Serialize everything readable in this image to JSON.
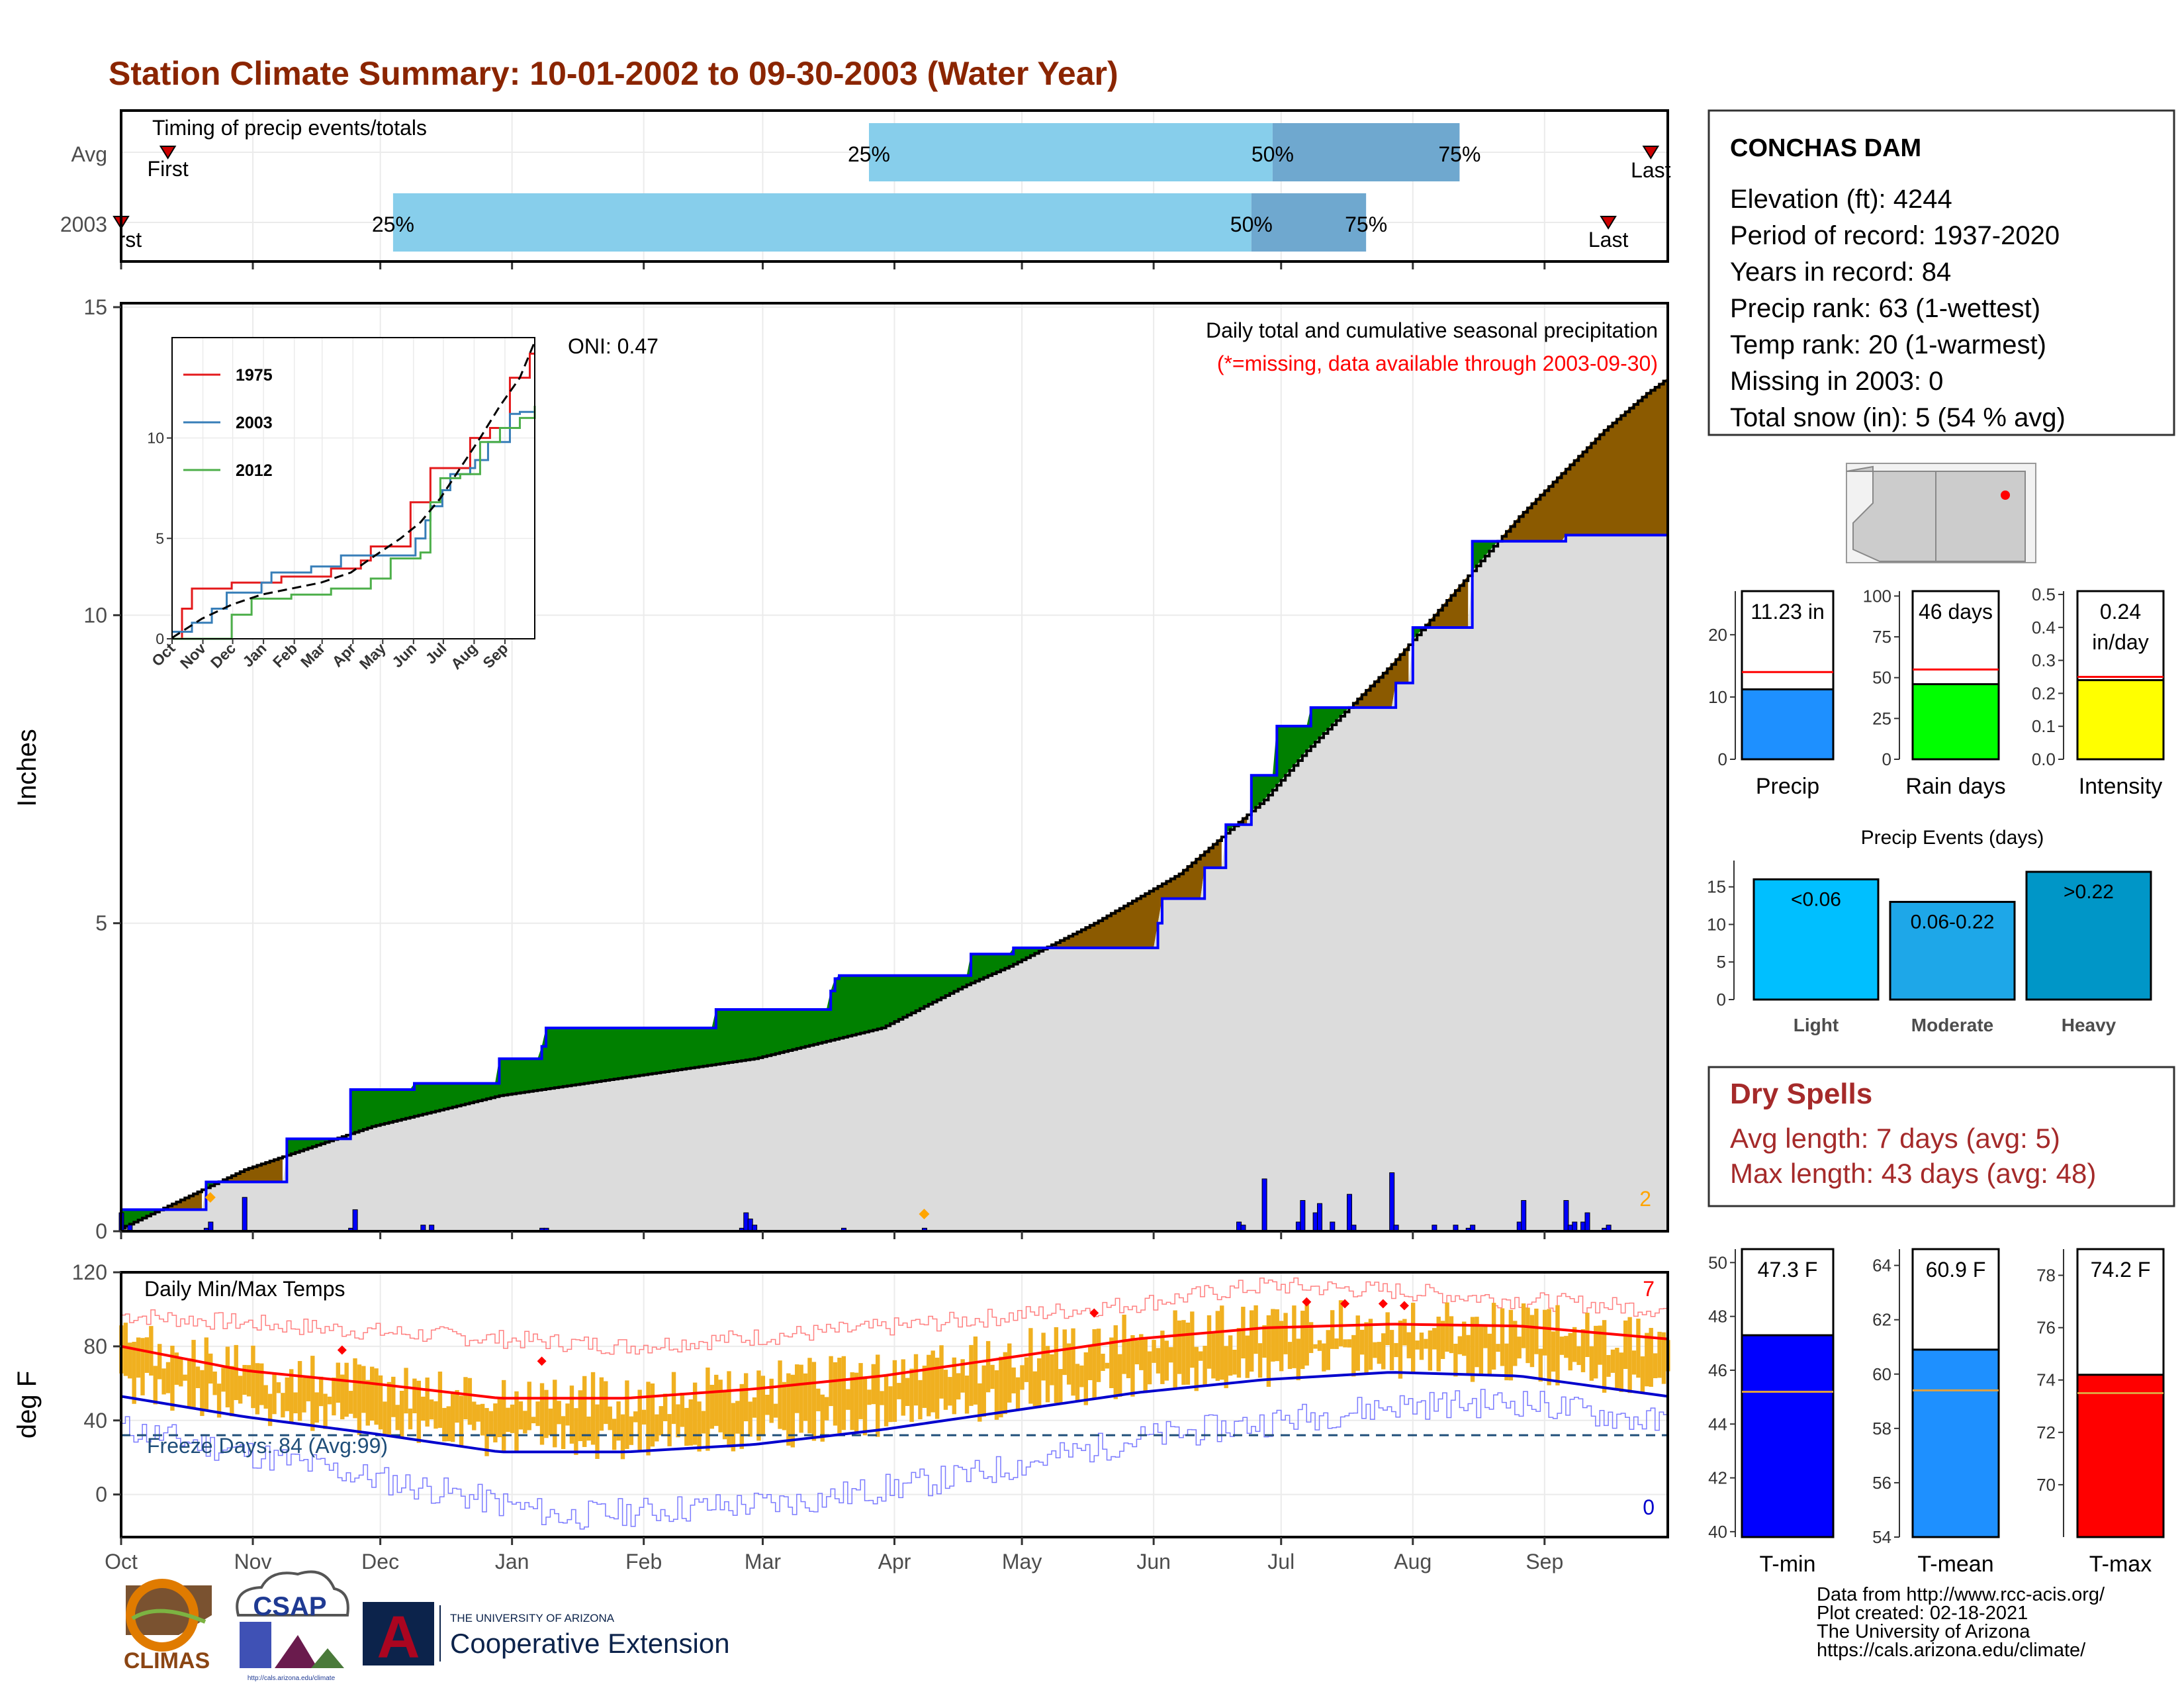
{
  "title": "Station Climate Summary: 10-01-2002 to 09-30-2003 (Water Year)",
  "colors": {
    "title": "#8b2500",
    "dry_spells": "#a52a2a",
    "cum_2003": "#0000ff",
    "cum_avg_fill": "#dcdcdc",
    "above_avg": "#008000",
    "below_avg": "#8b5a00",
    "daily_bar": "#0000ff",
    "temp_bar": "#f0b020",
    "tmax_smooth": "#ff0000",
    "tmin_smooth": "#0000cd",
    "freeze_line": "#1f4e79"
  },
  "timing": {
    "label": "Timing of precip events/totals",
    "rows": [
      "Avg",
      "2003"
    ],
    "avg": {
      "first_day": 12,
      "p25_day": 177,
      "p50_day": 272,
      "p75_day": 316,
      "last_day": 361,
      "first": "First",
      "last": "Last",
      "p25": "25%",
      "p50": "50%",
      "p75": "75%"
    },
    "y2003": {
      "first_day": 1,
      "p25_day": 65,
      "p50_day": 267,
      "p75_day": 294,
      "last_day": 351,
      "first": "First",
      "last": "Last",
      "p25": "25%",
      "p50": "50%",
      "p75": "75%"
    }
  },
  "precip_panel": {
    "subtitle": "Daily total and cumulative seasonal precipitation",
    "missing_note": "(*=missing, data available through 2003-09-30)",
    "oni": "ONI: 0.47",
    "ylabel": "Inches",
    "yticks": [
      0,
      5,
      10,
      15
    ],
    "ylim": [
      0,
      15
    ],
    "corner_count": "2",
    "month_labels": [
      "Oct",
      "Nov",
      "Dec",
      "Jan",
      "Feb",
      "Mar",
      "Apr",
      "May",
      "Jun",
      "Jul",
      "Aug",
      "Sep"
    ]
  },
  "chart_data": [
    {
      "type": "area",
      "name": "cumulative precipitation",
      "ylabel": "Inches",
      "ylim": [
        0,
        15
      ],
      "x_unit": "day of water year (1 = Oct 1)",
      "series": [
        {
          "name": "2003",
          "x": [
            1,
            20,
            21,
            24,
            40,
            41,
            55,
            56,
            70,
            71,
            90,
            91,
            100,
            101,
            140,
            141,
            168,
            169,
            170,
            200,
            201,
            210,
            211,
            245,
            246,
            255,
            256,
            260,
            261,
            266,
            267,
            272,
            273,
            280,
            281,
            286,
            287,
            300,
            301,
            304,
            305,
            318,
            319,
            340,
            341,
            350,
            351,
            365
          ],
          "y": [
            0.35,
            0.35,
            0.8,
            0.8,
            1.5,
            1.5,
            2.3,
            2.3,
            2.4,
            2.4,
            2.8,
            2.8,
            3.0,
            3.3,
            3.3,
            3.6,
            3.9,
            4.1,
            4.15,
            4.15,
            4.5,
            4.5,
            4.6,
            5.0,
            5.4,
            5.4,
            5.9,
            5.9,
            6.6,
            6.6,
            7.4,
            7.4,
            8.2,
            8.2,
            8.5,
            8.5,
            8.5,
            8.5,
            8.9,
            8.9,
            9.8,
            9.8,
            11.2,
            11.2,
            11.3,
            11.3,
            11.3,
            11.3
          ]
        },
        {
          "name": "Avg",
          "x": [
            1,
            30,
            60,
            90,
            120,
            150,
            180,
            200,
            210,
            230,
            250,
            260,
            270,
            280,
            290,
            300,
            310,
            320,
            330,
            340,
            350,
            360,
            365
          ],
          "y": [
            0.05,
            1.0,
            1.7,
            2.2,
            2.5,
            2.8,
            3.3,
            4.0,
            4.3,
            5.0,
            5.8,
            6.4,
            7.0,
            7.8,
            8.5,
            9.2,
            10.0,
            10.8,
            11.6,
            12.3,
            13.0,
            13.6,
            13.85
          ]
        }
      ],
      "daily_totals": {
        "x": [
          1,
          3,
          21,
          22,
          30,
          55,
          56,
          72,
          74,
          100,
          101,
          147,
          148,
          149,
          150,
          171,
          190,
          264,
          265,
          270,
          278,
          279,
          282,
          283,
          286,
          290,
          291,
          300,
          301,
          310,
          315,
          318,
          319,
          330,
          331,
          341,
          342,
          343,
          345,
          346,
          350,
          351
        ],
        "y": [
          0.3,
          0.1,
          0.05,
          0.15,
          0.55,
          0.05,
          0.35,
          0.1,
          0.1,
          0.05,
          0.05,
          0.05,
          0.3,
          0.2,
          0.1,
          0.05,
          0.05,
          0.15,
          0.1,
          0.85,
          0.15,
          0.5,
          0.3,
          0.45,
          0.15,
          0.6,
          0.1,
          0.95,
          0.1,
          0.1,
          0.1,
          0.05,
          0.1,
          0.15,
          0.5,
          0.5,
          0.1,
          0.15,
          0.15,
          0.3,
          0.05,
          0.1
        ]
      }
    },
    {
      "type": "line",
      "name": "inset cumulative by year",
      "x_labels": [
        "Oct",
        "Nov",
        "Dec",
        "Jan",
        "Feb",
        "Mar",
        "Apr",
        "May",
        "Jun",
        "Jul",
        "Aug",
        "Sep"
      ],
      "yticks": [
        0,
        5,
        10
      ],
      "ylim": [
        0,
        15
      ],
      "series": [
        {
          "name": "1975",
          "x": [
            0,
            10,
            20,
            60,
            110,
            160,
            190,
            200,
            230,
            240,
            260,
            280,
            300,
            320,
            340,
            360,
            365
          ],
          "y": [
            0,
            1.5,
            2.5,
            2.8,
            3.1,
            3.5,
            3.9,
            4.6,
            4.6,
            6.8,
            8.5,
            8.5,
            10.0,
            10.5,
            13.0,
            14.2,
            14.2
          ]
        },
        {
          "name": "2003",
          "x": [
            0,
            20,
            40,
            55,
            90,
            100,
            140,
            170,
            200,
            245,
            255,
            260,
            272,
            280,
            300,
            305,
            318,
            340,
            350,
            365
          ],
          "y": [
            0.35,
            0.8,
            1.5,
            2.3,
            2.8,
            3.3,
            3.6,
            4.15,
            4.15,
            5.0,
            5.9,
            6.6,
            7.4,
            8.2,
            8.5,
            8.9,
            9.8,
            11.2,
            11.3,
            11.3
          ]
        },
        {
          "name": "2012",
          "x": [
            0,
            40,
            60,
            80,
            120,
            160,
            200,
            220,
            250,
            260,
            270,
            290,
            310,
            330,
            350,
            365
          ],
          "y": [
            0,
            0,
            1.2,
            2.0,
            2.2,
            2.5,
            3.0,
            4.0,
            4.3,
            6.8,
            8.0,
            8.2,
            9.8,
            10.5,
            11.0,
            11.6
          ]
        },
        {
          "name": "Avg",
          "x": [
            0,
            30,
            60,
            90,
            120,
            150,
            180,
            200,
            230,
            250,
            270,
            290,
            310,
            330,
            350,
            365
          ],
          "y": [
            0.05,
            1.0,
            1.7,
            2.2,
            2.5,
            2.8,
            3.3,
            4.0,
            5.0,
            5.8,
            7.0,
            8.5,
            10.0,
            11.6,
            13.0,
            14.8
          ]
        }
      ]
    },
    {
      "type": "bar",
      "name": "seasonal totals",
      "panels": [
        {
          "title": "Precip",
          "label": "11.23 in",
          "value": 11.23,
          "average": 14.0,
          "ylim": [
            0,
            27
          ],
          "yticks": [
            0,
            10,
            20
          ],
          "color": "#1e90ff"
        },
        {
          "title": "Rain days",
          "label": "46 days",
          "value": 46,
          "average": 55,
          "ylim": [
            0,
            103
          ],
          "yticks": [
            0,
            25,
            50,
            75,
            100
          ],
          "color": "#00ff00"
        },
        {
          "title": "Intensity",
          "label_line1": "0.24",
          "label_line2": "in/day",
          "value": 0.24,
          "average": 0.25,
          "ylim": [
            0,
            0.51
          ],
          "yticks": [
            0.0,
            0.1,
            0.2,
            0.3,
            0.4,
            0.5
          ],
          "color": "#ffff00"
        }
      ]
    },
    {
      "type": "bar",
      "name": "precip events",
      "title": "Precip Events (days)",
      "categories": [
        "Light",
        "Moderate",
        "Heavy"
      ],
      "values": [
        16,
        13,
        17
      ],
      "bar_labels": [
        "<0.06",
        "0.06-0.22",
        ">0.22"
      ],
      "colors": [
        "#00bfff",
        "#1ea7e8",
        "#0096c7"
      ],
      "ylim": [
        0,
        18.5
      ],
      "yticks": [
        0,
        5,
        10,
        15
      ]
    },
    {
      "type": "bar",
      "name": "daily min/max temps",
      "title": "Daily Min/Max Temps",
      "ylabel": "deg F",
      "ylim": [
        -23,
        120
      ],
      "yticks": [
        0,
        40,
        80,
        120
      ],
      "freeze_label": "Freeze Days: 84 (Avg:99)",
      "freeze_line": 32,
      "record_high_count": "7",
      "record_low_count": "0",
      "month_labels": [
        "Oct",
        "Nov",
        "Dec",
        "Jan",
        "Feb",
        "Mar",
        "Apr",
        "May",
        "Jun",
        "Jul",
        "Aug",
        "Sep"
      ],
      "smoothed_tmax": {
        "x": [
          1,
          30,
          60,
          90,
          120,
          150,
          180,
          210,
          240,
          270,
          300,
          330,
          365
        ],
        "y": [
          80,
          67,
          60,
          52,
          52,
          57,
          64,
          74,
          84,
          90,
          92,
          91,
          84
        ]
      },
      "smoothed_tmin": {
        "x": [
          1,
          30,
          60,
          90,
          120,
          150,
          180,
          210,
          240,
          270,
          300,
          330,
          365
        ],
        "y": [
          53,
          42,
          33,
          23,
          23,
          27,
          35,
          45,
          55,
          62,
          66,
          64,
          53
        ]
      },
      "record_tmax": {
        "x": [
          1,
          60,
          120,
          180,
          240,
          270,
          300,
          330,
          365
        ],
        "y": [
          97,
          88,
          80,
          90,
          103,
          113,
          110,
          105,
          100
        ]
      },
      "record_tmin": {
        "x": [
          1,
          40,
          80,
          105,
          130,
          160,
          200,
          240,
          280,
          300,
          330,
          365
        ],
        "y": [
          36,
          18,
          0,
          -12,
          -8,
          -4,
          10,
          30,
          42,
          48,
          50,
          38
        ]
      },
      "record_high_marks": {
        "x": [
          53,
          100,
          230,
          280,
          289,
          298,
          303
        ],
        "y": [
          78,
          72,
          98,
          104,
          103,
          103,
          102
        ]
      }
    },
    {
      "type": "bar",
      "name": "temperature averages",
      "panels": [
        {
          "title": "T-min",
          "label": "47.3 F",
          "value": 47.3,
          "average": 45.2,
          "ylim": [
            39.8,
            50.5
          ],
          "yticks": [
            40,
            42,
            44,
            46,
            48,
            50
          ],
          "color": "#0000ff"
        },
        {
          "title": "T-mean",
          "label": "60.9 F",
          "value": 60.9,
          "average": 59.4,
          "ylim": [
            54,
            64.6
          ],
          "yticks": [
            54,
            56,
            58,
            60,
            62,
            64
          ],
          "color": "#1e90ff"
        },
        {
          "title": "T-max",
          "label": "74.2 F",
          "value": 74.2,
          "average": 73.5,
          "ylim": [
            68,
            79
          ],
          "yticks": [
            70,
            72,
            74,
            76,
            78
          ],
          "color": "#ff0000"
        }
      ]
    }
  ],
  "station": {
    "name": "CONCHAS DAM",
    "lines": [
      "Elevation (ft): 4244",
      "Period of record: 1937-2020",
      "Years in record: 84",
      "Precip rank: 63 (1-wettest)",
      "Temp rank: 20 (1-warmest)",
      "Missing in 2003: 0",
      "Total snow (in): 5 (54 % avg)"
    ]
  },
  "dry_spells": {
    "title": "Dry Spells",
    "avg": "Avg length: 7 days (avg: 5)",
    "max": "Max length: 43 days (avg: 48)"
  },
  "footer": {
    "lines": [
      "Data from http://www.rcc-acis.org/",
      "Plot created: 02-18-2021",
      "The University of Arizona",
      "https://cals.arizona.edu/climate/"
    ],
    "logo_climas": "CLIMAS",
    "logo_csap": "CSAP",
    "logo_csap_url": "http://cals.arizona.edu/climate",
    "ua_small": "THE UNIVERSITY OF ARIZONA",
    "ua_big": "Cooperative Extension",
    "ua_mark": "A"
  }
}
